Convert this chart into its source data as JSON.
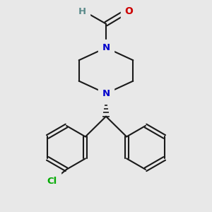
{
  "background_color": "#e8e8e8",
  "bond_color": "#1a1a1a",
  "N_color": "#0000cc",
  "O_color": "#cc0000",
  "H_color": "#5a8a8a",
  "Cl_color": "#00aa00",
  "line_width": 1.5,
  "figsize": [
    3.0,
    3.0
  ],
  "dpi": 100,
  "xlim": [
    0,
    10
  ],
  "ylim": [
    0,
    10
  ]
}
